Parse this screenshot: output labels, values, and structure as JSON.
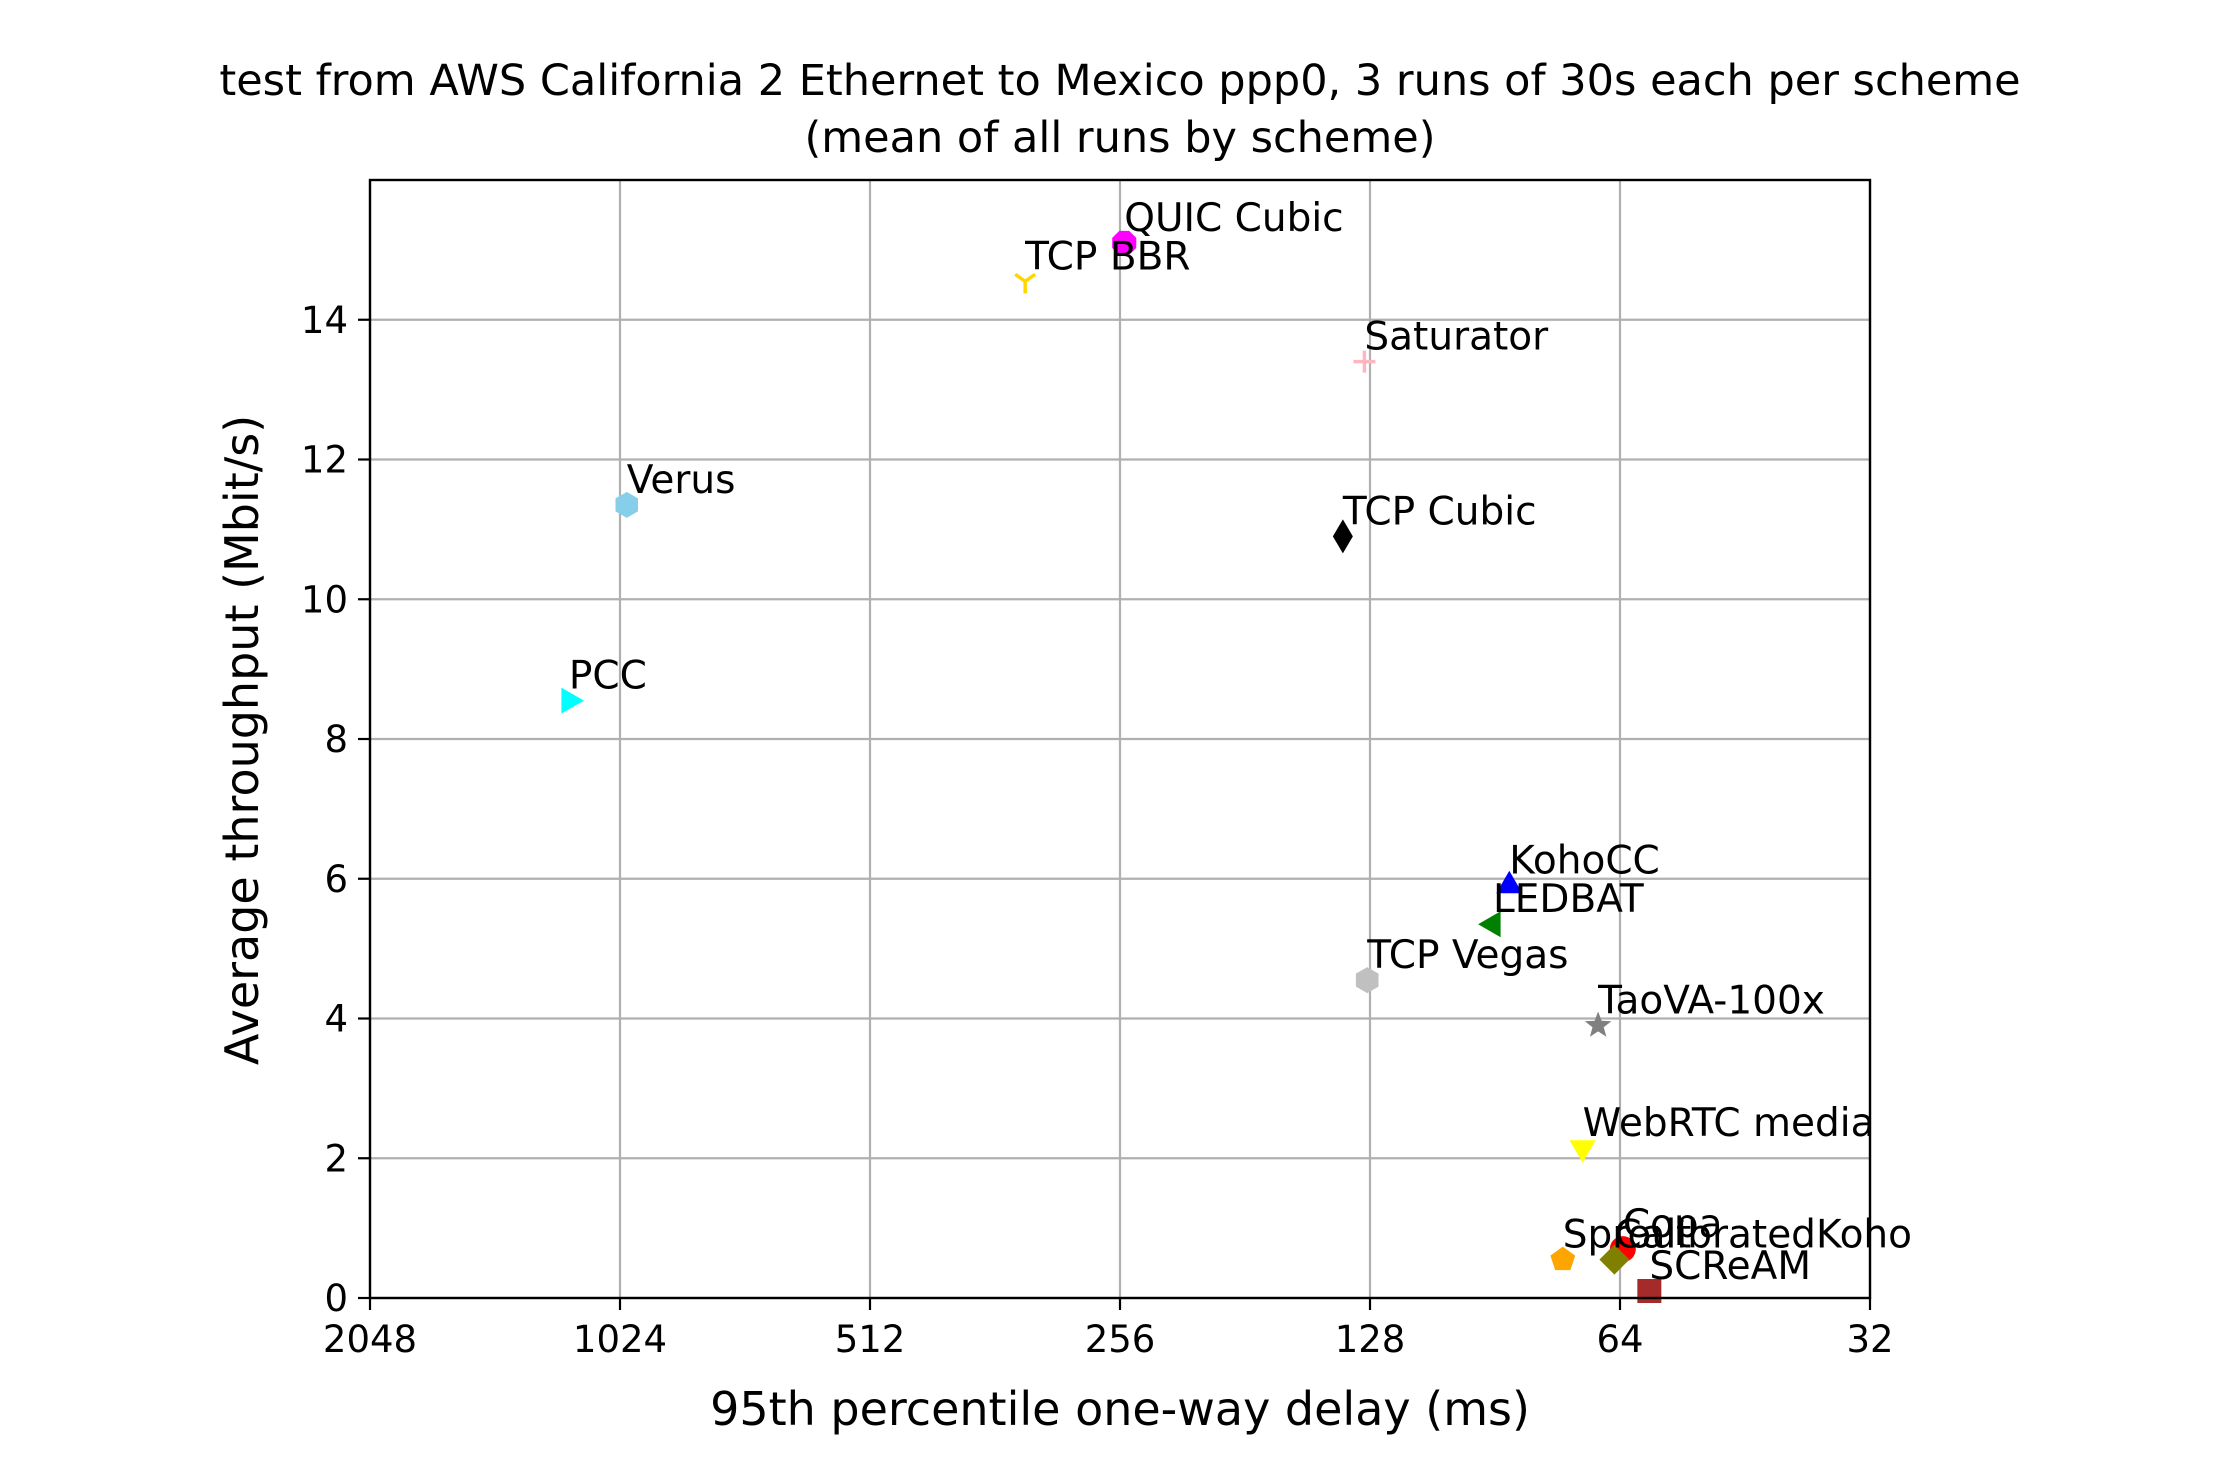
{
  "chart_data": {
    "type": "scatter",
    "title": "test from AWS California 2 Ethernet to Mexico ppp0, 3 runs of 30s each per scheme",
    "subtitle": "(mean of all runs by scheme)",
    "xlabel": "95th percentile one-way delay (ms)",
    "ylabel": "Average throughput (Mbit/s)",
    "x_scale": "log2",
    "x_inverted": true,
    "xlim": [
      2048,
      32
    ],
    "ylim": [
      0,
      16
    ],
    "x_ticks": [
      2048,
      1024,
      512,
      256,
      128,
      64,
      32
    ],
    "x_tick_labels": [
      "2048",
      "1024",
      "512",
      "256",
      "128",
      "64",
      "32"
    ],
    "y_ticks": [
      0,
      2,
      4,
      6,
      8,
      10,
      12,
      14
    ],
    "y_tick_labels": [
      "0",
      "2",
      "4",
      "6",
      "8",
      "10",
      "12",
      "14"
    ],
    "grid": true,
    "points": [
      {
        "name": "QUIC Cubic",
        "x": 253,
        "y": 15.1,
        "marker": "octagon",
        "color": "#ff00ff"
      },
      {
        "name": "TCP BBR",
        "x": 333,
        "y": 14.55,
        "marker": "tri_down",
        "color": "#ffd700"
      },
      {
        "name": "Saturator",
        "x": 130,
        "y": 13.4,
        "marker": "plus",
        "color": "#ffb6c1"
      },
      {
        "name": "Verus",
        "x": 1005,
        "y": 11.35,
        "marker": "hexagon",
        "color": "#87ceeb"
      },
      {
        "name": "TCP Cubic",
        "x": 138,
        "y": 10.9,
        "marker": "thin_diamond",
        "color": "#000000"
      },
      {
        "name": "PCC",
        "x": 1180,
        "y": 8.55,
        "marker": "triangle_right",
        "color": "#00ffff"
      },
      {
        "name": "KohoCC",
        "x": 87,
        "y": 5.9,
        "marker": "triangle_up",
        "color": "#0000ff"
      },
      {
        "name": "LEDBAT",
        "x": 91,
        "y": 5.35,
        "marker": "triangle_left",
        "color": "#008000"
      },
      {
        "name": "TCP Vegas",
        "x": 129,
        "y": 4.55,
        "marker": "hexagon",
        "color": "#c0c0c0"
      },
      {
        "name": "TaoVA-100x",
        "x": 68,
        "y": 3.9,
        "marker": "star",
        "color": "#808080"
      },
      {
        "name": "WebRTC media",
        "x": 71,
        "y": 2.15,
        "marker": "triangle_down",
        "color": "#ffff00"
      },
      {
        "name": "Copa",
        "x": 63.5,
        "y": 0.7,
        "marker": "circle",
        "color": "#ff0000"
      },
      {
        "name": "Sprout",
        "x": 75,
        "y": 0.55,
        "marker": "pentagon",
        "color": "#ffa500"
      },
      {
        "name": "CalibratedKoho",
        "x": 65,
        "y": 0.55,
        "marker": "diamond",
        "color": "#808000"
      },
      {
        "name": "SCReAM",
        "x": 59,
        "y": 0.1,
        "marker": "square",
        "color": "#a52a2a"
      }
    ]
  }
}
